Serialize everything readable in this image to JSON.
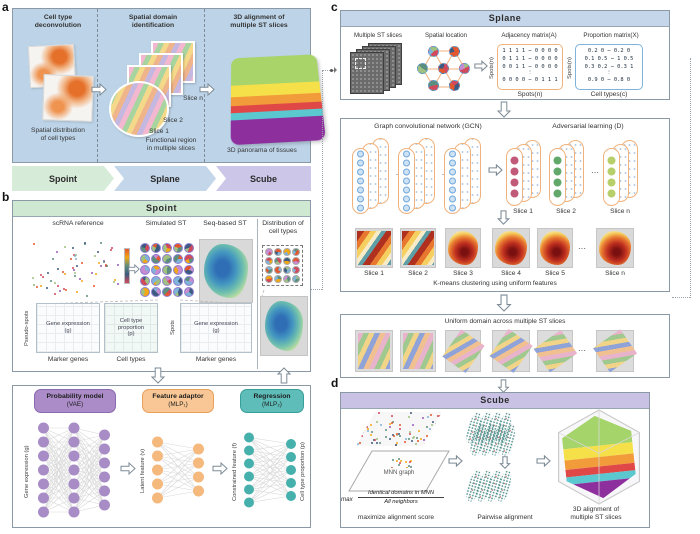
{
  "colors": {
    "panel_a_bg": "#bdd4e8",
    "spoint_green": "#cfe8d2",
    "splane_blue": "#c6d6ea",
    "scube_purple": "#c9c2e5",
    "vae_purple": "#a88cc5",
    "mlp_orange": "#f5b97e",
    "regression_teal": "#45b0ac",
    "gcn_outline_orange": "#f0b27c",
    "gcn_node_blue": "#cfe2f4",
    "adv_red": "#c05a78",
    "adv_green": "#62a86a",
    "adv_lightgreen": "#b7cf6b"
  },
  "panel_a": {
    "label": "a",
    "steps": [
      {
        "title": "Cell type\ndeconvolution",
        "caption": "Spatial distribution\nof cell types"
      },
      {
        "title": "Spatial domain\nidentification",
        "caption": "Functional region\nin multiple slices",
        "slice_top": "Slice n",
        "slice_mid": "Slice 2",
        "slice_bottom": "Slice 1"
      },
      {
        "title": "3D alignment of\nmultiple ST slices",
        "caption": "3D panorama of tissues"
      }
    ],
    "flow": [
      "Spoint",
      "Splane",
      "Scube"
    ]
  },
  "panel_b": {
    "label": "b",
    "header": "Spoint",
    "inputs": [
      "scRNA reference",
      "Simulated ST",
      "Seq-based ST"
    ],
    "output_title": "Distribution of\ncell types",
    "grid1": {
      "text": "Gene expression\n(g)",
      "x": "Marker genes",
      "y": "Pseudo-spots"
    },
    "grid2": {
      "text": "Cell type\nproportion\n(p)",
      "x": "Cell types"
    },
    "grid3": {
      "text": "Gene expression\n(g)",
      "x": "Marker genes",
      "y": "Spots"
    },
    "nn1": {
      "name": "Probability model",
      "sub": "(VAE)",
      "axis": "Gene expression (g)"
    },
    "nn2": {
      "name": "Feature adaptor",
      "sub": "(MLP₁)",
      "axis": "Latent feature (v)"
    },
    "nn3": {
      "name": "Regression",
      "sub": "(MLP₂)",
      "axis_left": "Constrained feature (f)",
      "axis_right": "Cell type proportion (p)"
    }
  },
  "panel_c": {
    "label": "c",
    "header": "Splane",
    "col_labels": [
      "Multiple ST slices",
      "Spatial location",
      "Adjacency matrix(A)",
      "Proportion matrix(X)"
    ],
    "adjacency": {
      "rows": [
        "1 1 1 1 ⋯ 0 0 0 0",
        "0 1 1 1 ⋯ 0 0 0 0",
        "0 0 1 1 ⋯ 0 0 0 0",
        "⋮",
        "0 0 0 0 ⋯ 0 1 1 1"
      ],
      "y_axis": "Spots(n)",
      "x_axis": "Spots(n)"
    },
    "proportion": {
      "rows": [
        "0.2  0  ⋯ 0.2  0",
        "0.1 0.5 ⋯  1  0.5",
        "0.3 0.2 ⋯ 0.3  1",
        "⋮",
        "0.9  0  ⋯ 0.8  0"
      ],
      "y_axis": "Spots(n)",
      "x_axis": "Cell types(c)"
    },
    "gcn_title": "Graph convolutional network (GCN)",
    "adv_title": "Adversarial learning (D)",
    "adv_slices": [
      "Slice 1",
      "Slice 2",
      "⋯",
      "Slice n"
    ],
    "kmeans_labels": [
      "Slice 1",
      "Slice 2",
      "Slice 3",
      "Slice 4",
      "Slice 5",
      "⋯",
      "Slice n"
    ],
    "kmeans_caption": "K-means clustering using uniform features",
    "uniform_caption": "Uniform domain across multiple ST slices",
    "uniform_dots": "⋯"
  },
  "panel_d": {
    "label": "d",
    "header": "Scube",
    "mnn_label": "MNN graph",
    "formula": {
      "prefix": "max",
      "numerator": "Identical domains in MNN",
      "denominator": "All neighbors"
    },
    "caption_left": "maximize alignment score",
    "caption_mid": "Pairwise alignment",
    "caption_right": "3D alignment of\nmultiple ST slices"
  }
}
